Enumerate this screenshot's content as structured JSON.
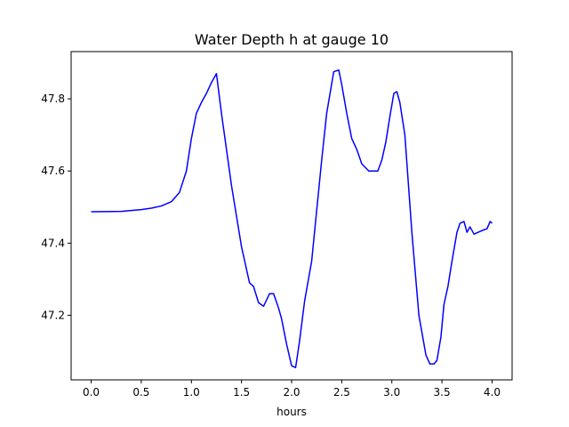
{
  "chart_data": {
    "type": "line",
    "title": "Water Depth h at gauge 10",
    "xlabel": "hours",
    "ylabel": "",
    "xlim": [
      -0.2,
      4.2
    ],
    "ylim": [
      47.021,
      47.931
    ],
    "xticks": [
      0.0,
      0.5,
      1.0,
      1.5,
      2.0,
      2.5,
      3.0,
      3.5,
      4.0
    ],
    "xtick_labels": [
      "0.0",
      "0.5",
      "1.0",
      "1.5",
      "2.0",
      "2.5",
      "3.0",
      "3.5",
      "4.0"
    ],
    "yticks": [
      47.2,
      47.4,
      47.6,
      47.8
    ],
    "ytick_labels": [
      "47.2",
      "47.4",
      "47.6",
      "47.8"
    ],
    "grid": false,
    "series": [
      {
        "color": "#0000ff",
        "x": [
          0.0,
          0.3,
          0.5,
          0.6,
          0.7,
          0.8,
          0.88,
          0.95,
          1.0,
          1.05,
          1.1,
          1.15,
          1.2,
          1.25,
          1.3,
          1.4,
          1.5,
          1.58,
          1.62,
          1.67,
          1.72,
          1.78,
          1.82,
          1.87,
          1.9,
          1.95,
          2.0,
          2.04,
          2.08,
          2.13,
          2.2,
          2.3,
          2.35,
          2.42,
          2.47,
          2.5,
          2.55,
          2.6,
          2.65,
          2.7,
          2.77,
          2.8,
          2.86,
          2.9,
          2.94,
          2.98,
          3.02,
          3.05,
          3.08,
          3.13,
          3.2,
          3.27,
          3.34,
          3.38,
          3.42,
          3.45,
          3.49,
          3.52,
          3.56,
          3.6,
          3.65,
          3.68,
          3.72,
          3.75,
          3.78,
          3.82,
          3.86,
          3.9,
          3.95,
          3.98,
          4.0
        ],
        "y": [
          47.487,
          47.488,
          47.493,
          47.497,
          47.503,
          47.515,
          47.54,
          47.6,
          47.69,
          47.76,
          47.79,
          47.815,
          47.845,
          47.87,
          47.76,
          47.56,
          47.39,
          47.29,
          47.28,
          47.235,
          47.225,
          47.26,
          47.26,
          47.22,
          47.19,
          47.12,
          47.06,
          47.055,
          47.13,
          47.24,
          47.35,
          47.63,
          47.76,
          47.875,
          47.88,
          47.84,
          47.76,
          47.69,
          47.66,
          47.62,
          47.6,
          47.6,
          47.6,
          47.63,
          47.68,
          47.75,
          47.815,
          47.82,
          47.79,
          47.7,
          47.43,
          47.2,
          47.09,
          47.065,
          47.065,
          47.075,
          47.14,
          47.23,
          47.28,
          47.35,
          47.43,
          47.455,
          47.46,
          47.43,
          47.445,
          47.425,
          47.43,
          47.435,
          47.44,
          47.46,
          47.455
        ]
      }
    ]
  }
}
